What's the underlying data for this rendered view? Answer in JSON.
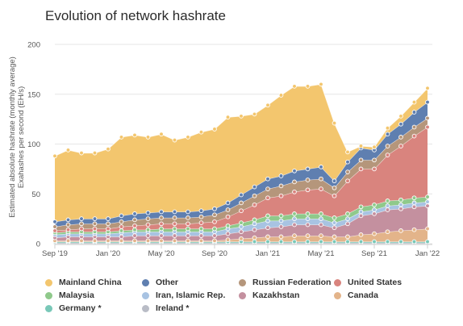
{
  "chart_data": {
    "type": "area",
    "title": "Evolution of network hashrate",
    "ylabel": "Estimated absolute hashrate (monthly average)",
    "ylabel2": "Exahashes per second (EH/s)",
    "ylim": [
      0,
      200
    ],
    "yticks": [
      0,
      50,
      100,
      150,
      200
    ],
    "xticks": [
      {
        "label": "Sep '19",
        "index": 0
      },
      {
        "label": "Jan '20",
        "index": 4
      },
      {
        "label": "May '20",
        "index": 8
      },
      {
        "label": "Sep '20",
        "index": 12
      },
      {
        "label": "Jan '21",
        "index": 16
      },
      {
        "label": "May '21",
        "index": 20
      },
      {
        "label": "Sep '21",
        "index": 24
      },
      {
        "label": "Jan '22",
        "index": 28
      }
    ],
    "x": [
      "Sep '19",
      "Oct '19",
      "Nov '19",
      "Dec '19",
      "Jan '20",
      "Feb '20",
      "Mar '20",
      "Apr '20",
      "May '20",
      "Jun '20",
      "Jul '20",
      "Aug '20",
      "Sep '20",
      "Oct '20",
      "Nov '20",
      "Dec '20",
      "Jan '21",
      "Feb '21",
      "Mar '21",
      "Apr '21",
      "May '21",
      "Jun '21",
      "Jul '21",
      "Aug '21",
      "Sep '21",
      "Oct '21",
      "Nov '21",
      "Dec '21",
      "Jan '22"
    ],
    "stacking": "cumulative series, bottom to top",
    "series": [
      {
        "name": "Ireland",
        "color": "#b9bcc6",
        "values": [
          1,
          1,
          1,
          1,
          1,
          1,
          1,
          1,
          1,
          1,
          1,
          1,
          1,
          1,
          1,
          1,
          1,
          1,
          1,
          1,
          1,
          1,
          1,
          1,
          1,
          1,
          1,
          1,
          1
        ]
      },
      {
        "name": "Germany",
        "color": "#79c8b8",
        "values": [
          1,
          1,
          1,
          1,
          1,
          1,
          1,
          1,
          1,
          1,
          1,
          1,
          1,
          1,
          1,
          1,
          1,
          1,
          1,
          1,
          1,
          1,
          1,
          1,
          1,
          1,
          1,
          1,
          1
        ]
      },
      {
        "name": "Canada",
        "color": "#e3b48a",
        "values": [
          1,
          1,
          1,
          1,
          1,
          1,
          1,
          1,
          1,
          1,
          1,
          1,
          1,
          2,
          3,
          4,
          5,
          5,
          6,
          6,
          6,
          5,
          5,
          7,
          8,
          10,
          11,
          12,
          13
        ]
      },
      {
        "name": "Kazakhstan",
        "color": "#c4909f",
        "values": [
          3,
          4,
          4,
          4,
          4,
          4,
          5,
          5,
          5,
          5,
          5,
          5,
          5,
          6,
          7,
          8,
          9,
          10,
          11,
          11,
          11,
          9,
          13,
          19,
          20,
          22,
          22,
          23,
          23
        ]
      },
      {
        "name": "Iran, Islamic Rep.",
        "color": "#a8c3e2",
        "values": [
          3,
          3,
          3,
          3,
          3,
          4,
          4,
          4,
          4,
          4,
          4,
          4,
          4,
          5,
          5,
          6,
          7,
          6,
          6,
          6,
          6,
          5,
          5,
          4,
          4,
          4,
          4,
          4,
          4
        ]
      },
      {
        "name": "Malaysia",
        "color": "#8fc98b",
        "values": [
          2,
          2,
          2,
          2,
          2,
          2,
          2,
          2,
          3,
          3,
          3,
          3,
          3,
          3,
          4,
          4,
          5,
          5,
          5,
          5,
          5,
          5,
          5,
          5,
          5,
          5,
          5,
          5,
          5
        ]
      },
      {
        "name": "United States",
        "color": "#d9847e",
        "values": [
          2,
          2,
          3,
          3,
          3,
          4,
          4,
          5,
          5,
          5,
          5,
          6,
          7,
          9,
          12,
          15,
          18,
          20,
          22,
          24,
          25,
          22,
          33,
          38,
          36,
          46,
          54,
          62,
          70
        ]
      },
      {
        "name": "Russian Federation",
        "color": "#b5967b",
        "values": [
          4,
          5,
          5,
          5,
          5,
          5,
          6,
          6,
          6,
          6,
          6,
          6,
          7,
          7,
          8,
          9,
          9,
          10,
          10,
          10,
          10,
          8,
          9,
          9,
          9,
          9,
          9,
          9,
          9
        ]
      },
      {
        "name": "Other",
        "color": "#5f7fb0",
        "values": [
          5,
          5,
          5,
          5,
          5,
          6,
          6,
          6,
          6,
          6,
          6,
          6,
          6,
          7,
          8,
          9,
          10,
          10,
          11,
          11,
          12,
          7,
          10,
          12,
          10,
          12,
          13,
          15,
          16
        ]
      },
      {
        "name": "Mainland China",
        "color": "#f3c66e",
        "values": [
          66,
          70,
          66,
          66,
          70,
          79,
          79,
          76,
          78,
          72,
          75,
          79,
          80,
          86,
          79,
          73,
          74,
          81,
          85,
          83,
          83,
          58,
          10,
          2,
          3,
          6,
          8,
          10,
          14
        ]
      }
    ],
    "legend": {
      "placement": "bottom",
      "items": [
        {
          "label": "Mainland China",
          "color": "#f3c66e"
        },
        {
          "label": "Other",
          "color": "#5f7fb0"
        },
        {
          "label": "Russian Federation",
          "color": "#b5967b"
        },
        {
          "label": "United States",
          "color": "#d9847e"
        },
        {
          "label": "Malaysia",
          "color": "#8fc98b"
        },
        {
          "label": "Iran, Islamic Rep.",
          "color": "#a8c3e2"
        },
        {
          "label": "Kazakhstan",
          "color": "#c4909f"
        },
        {
          "label": "Canada",
          "color": "#e3b48a"
        },
        {
          "label": "Germany *",
          "color": "#79c8b8"
        },
        {
          "label": "Ireland *",
          "color": "#b9bcc6"
        }
      ]
    },
    "grid": true
  }
}
